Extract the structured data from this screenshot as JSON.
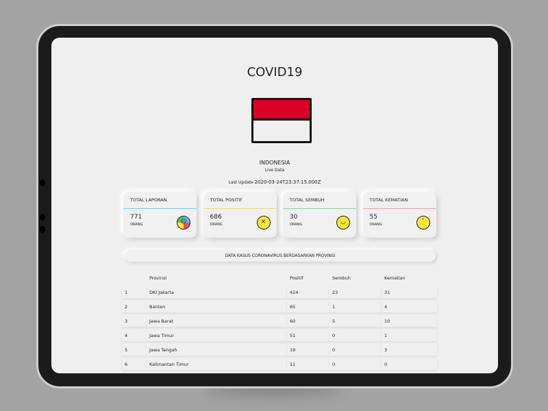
{
  "app": {
    "title": "COVID19",
    "country": "INDONESIA",
    "subtitle": "Live Data",
    "last_update_label": "Last Update",
    "last_update": "2020-03-24T23:37:15.000Z"
  },
  "cards": [
    {
      "label": "TOTAL LAPORAN",
      "value": "771",
      "unit": "ORANG",
      "color": "#7ec8e3",
      "icon": "multi-faces-icon"
    },
    {
      "label": "TOTAL POSITIF",
      "value": "686",
      "unit": "ORANG",
      "color": "#f2d97a",
      "icon": "sick-face-icon"
    },
    {
      "label": "TOTAL SEMBUH",
      "value": "30",
      "unit": "ORANG",
      "color": "#8fd19e",
      "icon": "smile-face-icon"
    },
    {
      "label": "TOTAL KEMATIAN",
      "value": "55",
      "unit": "ORANG",
      "color": "#f0a0a0",
      "icon": "crying-face-icon"
    }
  ],
  "table": {
    "title": "DATA KASUS CORONAVIRUS BERDASARKAN PROVINSI",
    "headers": [
      "",
      "Provinsi",
      "Positif",
      "Sembuh",
      "Kematian"
    ],
    "rows": [
      [
        "1",
        "DKI Jakarta",
        "424",
        "23",
        "31"
      ],
      [
        "2",
        "Banten",
        "65",
        "1",
        "4"
      ],
      [
        "3",
        "Jawa Barat",
        "60",
        "5",
        "10"
      ],
      [
        "4",
        "Jawa Timur",
        "51",
        "0",
        "1"
      ],
      [
        "5",
        "Jawa Tengah",
        "19",
        "0",
        "3"
      ],
      [
        "6",
        "Kalimantan Timur",
        "11",
        "0",
        "0"
      ]
    ]
  }
}
